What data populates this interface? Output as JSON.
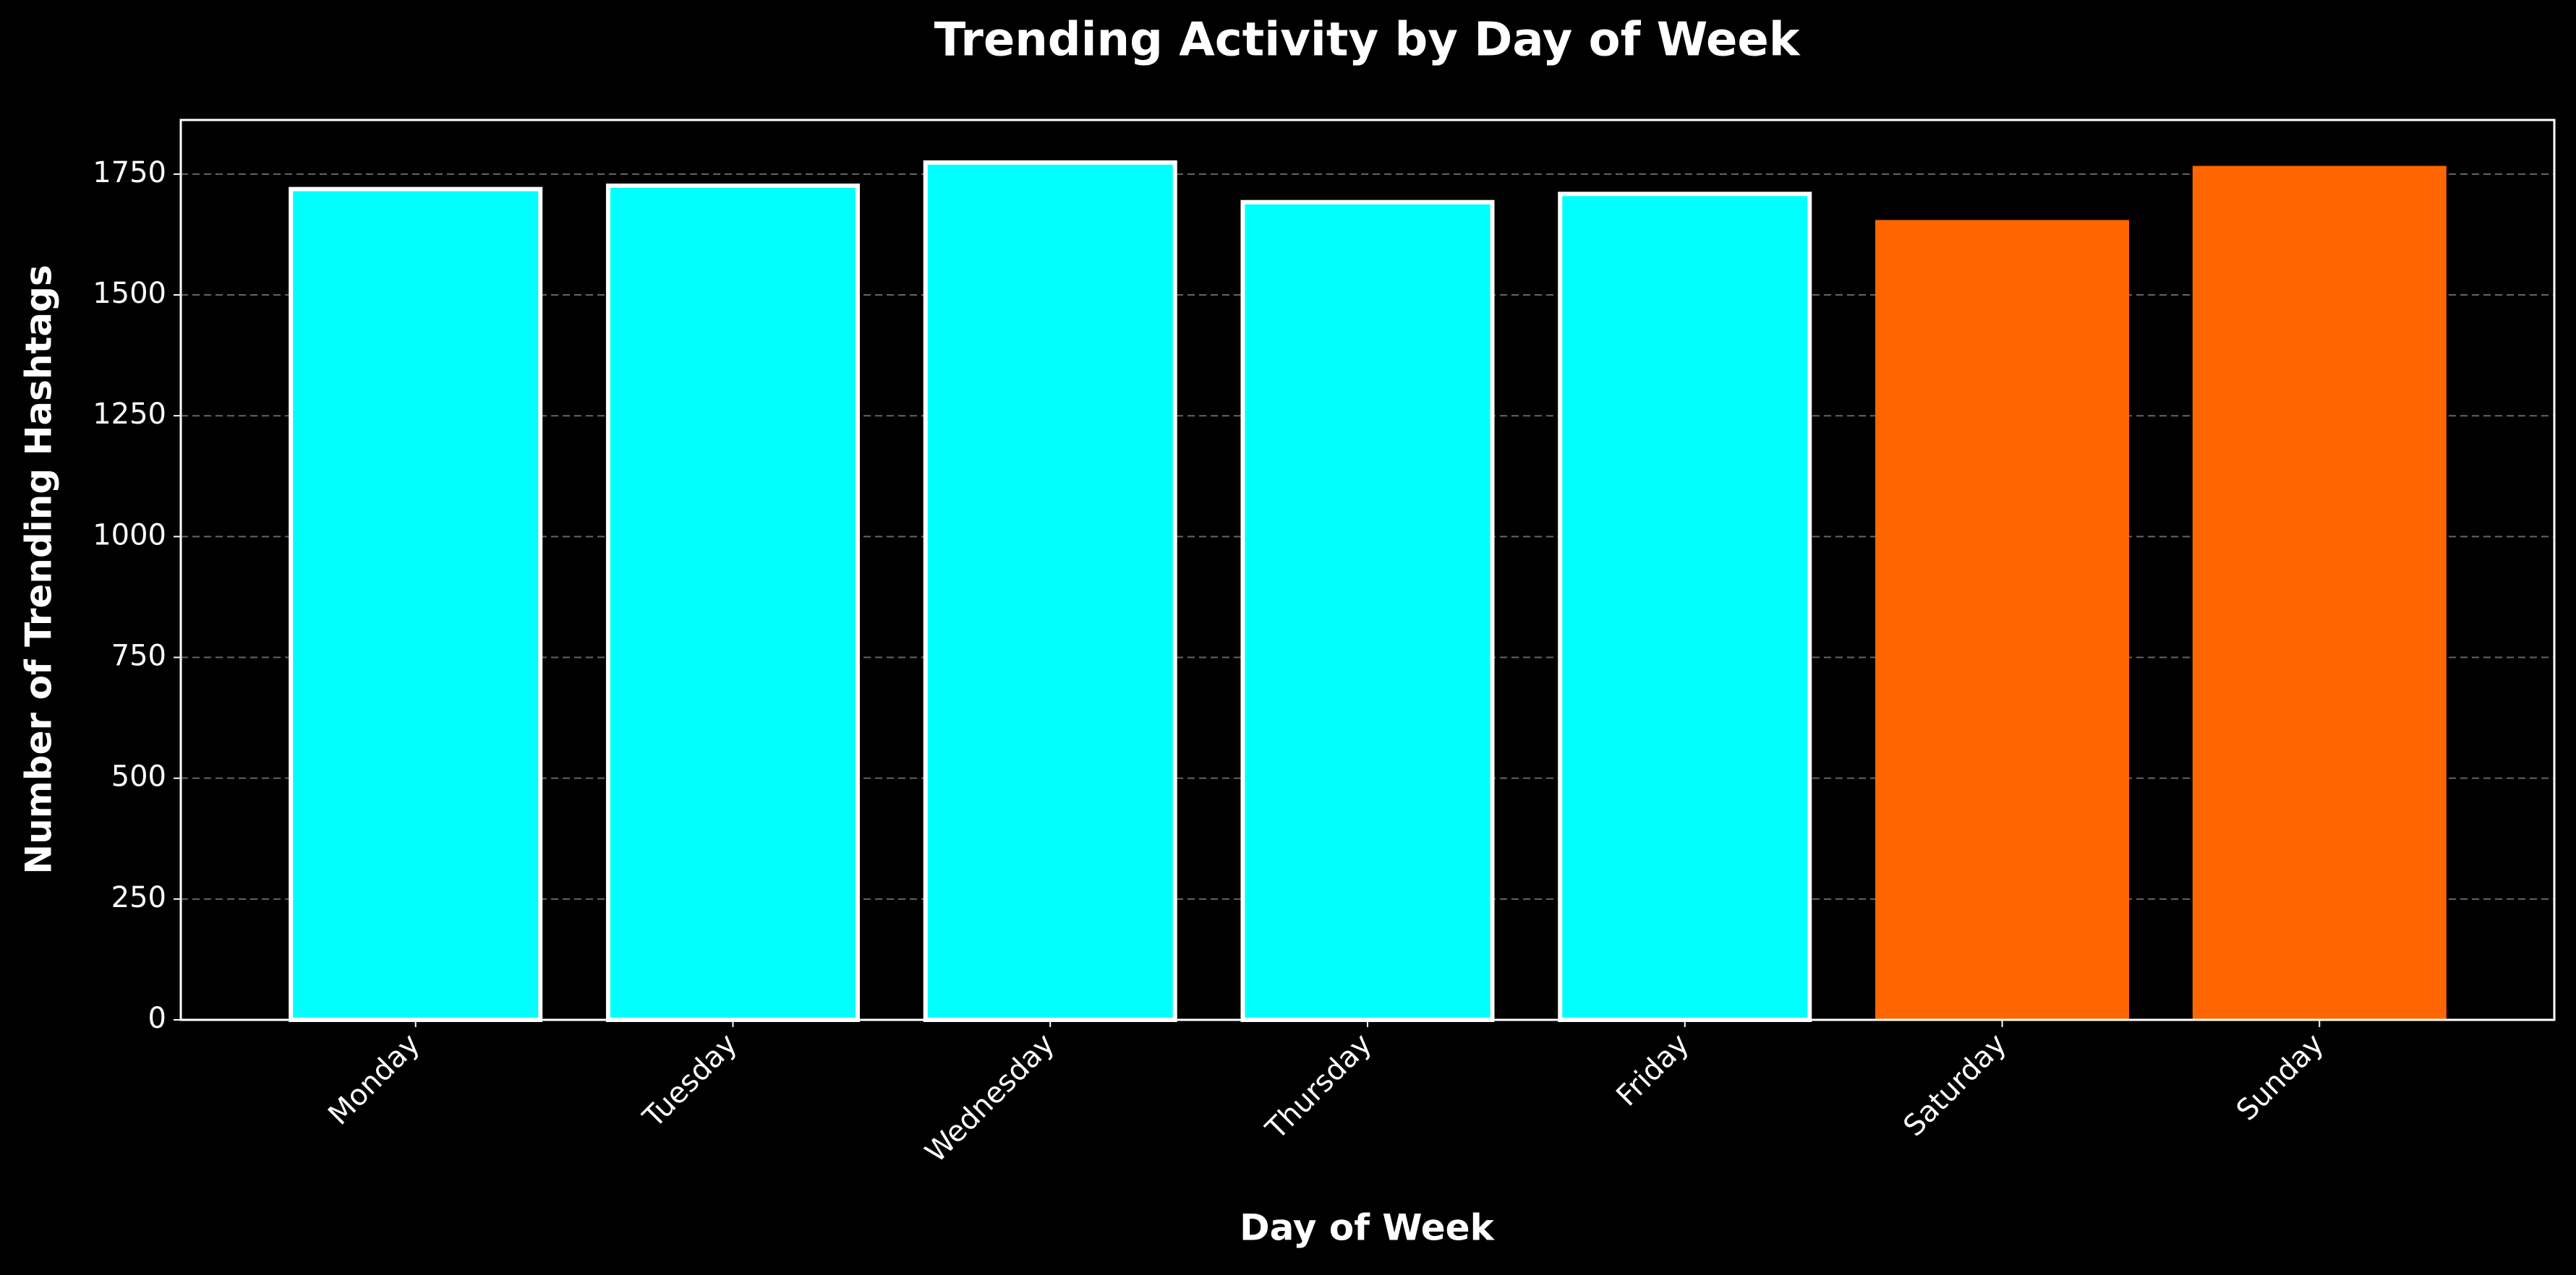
{
  "chart_data": {
    "type": "bar",
    "title": "Trending Activity by Day of Week",
    "x_label": "Day of Week",
    "y_label": "Number of Trending Hashtags",
    "categories": [
      "Monday",
      "Tuesday",
      "Wednesday",
      "Thursday",
      "Friday",
      "Saturday",
      "Sunday"
    ],
    "values": [
      1719,
      1726,
      1774,
      1692,
      1709,
      1655,
      1767
    ],
    "colors": [
      "#00ffff",
      "#00ffff",
      "#00ffff",
      "#00ffff",
      "#00ffff",
      "#ff6600",
      "#ff6600"
    ],
    "edge_colors": [
      "#ffffff",
      "#ffffff",
      "#ffffff",
      "#ffffff",
      "#ffffff",
      "none",
      "none"
    ],
    "ylim": [
      0,
      1862
    ],
    "yticks": [
      0,
      250,
      500,
      750,
      1000,
      1250,
      1500,
      1750
    ],
    "grid": true
  }
}
